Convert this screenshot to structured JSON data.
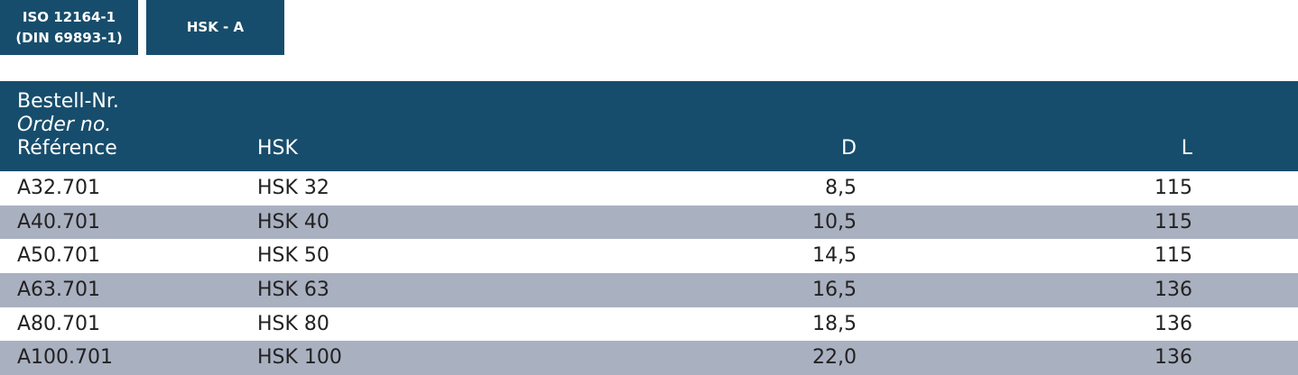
{
  "tags": {
    "iso_line1": "ISO 12164-1",
    "iso_line2": "(DIN 69893-1)",
    "hsk": "HSK - A"
  },
  "table": {
    "headers": {
      "order_de": "Bestell-Nr.",
      "order_en": "Order no.",
      "order_fr": "Référence",
      "hsk": "HSK",
      "d": "D",
      "l": "L"
    },
    "rows": [
      {
        "order": "A32.701",
        "hsk": "HSK 32",
        "d": "8,5",
        "l": "115"
      },
      {
        "order": "A40.701",
        "hsk": "HSK 40",
        "d": "10,5",
        "l": "115"
      },
      {
        "order": "A50.701",
        "hsk": "HSK 50",
        "d": "14,5",
        "l": "115"
      },
      {
        "order": "A63.701",
        "hsk": "HSK 63",
        "d": "16,5",
        "l": "136"
      },
      {
        "order": "A80.701",
        "hsk": "HSK 80",
        "d": "18,5",
        "l": "136"
      },
      {
        "order": "A100.701",
        "hsk": "HSK 100",
        "d": "22,0",
        "l": "136"
      }
    ]
  },
  "colors": {
    "header_bg": "#174d6c",
    "alt_row_bg": "#a9b0c0",
    "text": "#222222"
  }
}
